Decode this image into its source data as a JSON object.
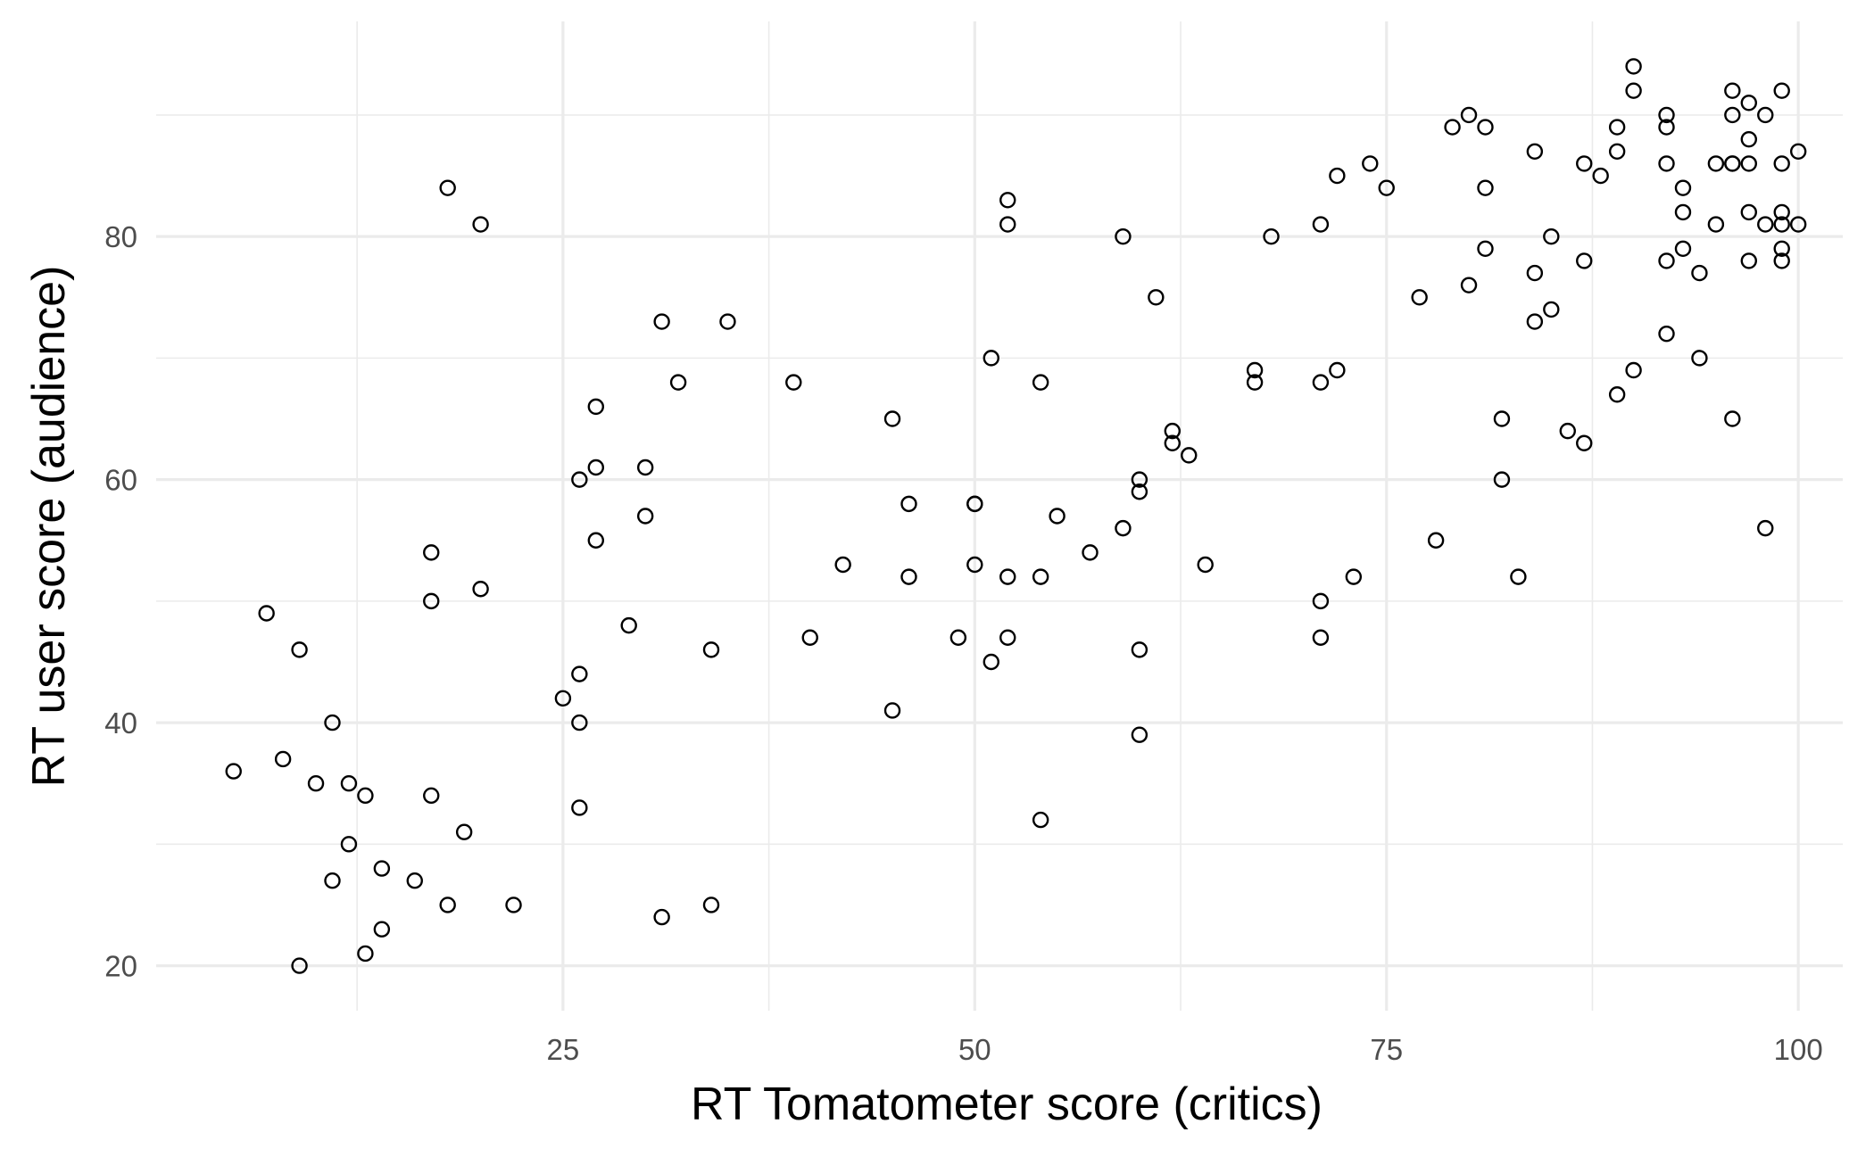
{
  "chart_data": {
    "type": "scatter",
    "xlabel": "RT Tomatometer score (critics)",
    "ylabel": "RT user score (audience)",
    "xlim": [
      0.3,
      102.7
    ],
    "ylim": [
      16.3,
      97.7
    ],
    "x_ticks": [
      25,
      50,
      75,
      100
    ],
    "x_minor_ticks": [
      12.5,
      37.5,
      62.5,
      87.5
    ],
    "y_ticks": [
      20,
      40,
      60,
      80
    ],
    "y_minor_ticks": [
      30,
      50,
      70,
      90
    ],
    "grid": true,
    "legend": "none",
    "marker": "open-circle",
    "points": [
      [
        5,
        36
      ],
      [
        7,
        49
      ],
      [
        8,
        37
      ],
      [
        9,
        46
      ],
      [
        9,
        20
      ],
      [
        10,
        35
      ],
      [
        11,
        40
      ],
      [
        11,
        27
      ],
      [
        12,
        35
      ],
      [
        12,
        30
      ],
      [
        13,
        34
      ],
      [
        13,
        21
      ],
      [
        14,
        28
      ],
      [
        14,
        23
      ],
      [
        16,
        27
      ],
      [
        17,
        54
      ],
      [
        17,
        50
      ],
      [
        17,
        34
      ],
      [
        18,
        84
      ],
      [
        18,
        25
      ],
      [
        19,
        31
      ],
      [
        20,
        81
      ],
      [
        20,
        51
      ],
      [
        22,
        25
      ],
      [
        25,
        42
      ],
      [
        26,
        60
      ],
      [
        26,
        44
      ],
      [
        26,
        40
      ],
      [
        26,
        33
      ],
      [
        27,
        66
      ],
      [
        27,
        61
      ],
      [
        27,
        55
      ],
      [
        29,
        48
      ],
      [
        30,
        61
      ],
      [
        30,
        57
      ],
      [
        31,
        73
      ],
      [
        31,
        24
      ],
      [
        32,
        68
      ],
      [
        34,
        46
      ],
      [
        34,
        25
      ],
      [
        35,
        73
      ],
      [
        39,
        68
      ],
      [
        40,
        47
      ],
      [
        42,
        53
      ],
      [
        45,
        65
      ],
      [
        45,
        41
      ],
      [
        46,
        58
      ],
      [
        46,
        52
      ],
      [
        49,
        47
      ],
      [
        50,
        58
      ],
      [
        50,
        58
      ],
      [
        50,
        53
      ],
      [
        51,
        70
      ],
      [
        51,
        45
      ],
      [
        52,
        83
      ],
      [
        52,
        81
      ],
      [
        52,
        52
      ],
      [
        52,
        47
      ],
      [
        54,
        68
      ],
      [
        54,
        52
      ],
      [
        54,
        32
      ],
      [
        55,
        57
      ],
      [
        57,
        54
      ],
      [
        59,
        80
      ],
      [
        59,
        56
      ],
      [
        60,
        60
      ],
      [
        60,
        59
      ],
      [
        60,
        46
      ],
      [
        60,
        39
      ],
      [
        61,
        75
      ],
      [
        62,
        64
      ],
      [
        62,
        63
      ],
      [
        63,
        62
      ],
      [
        64,
        53
      ],
      [
        67,
        69
      ],
      [
        67,
        68
      ],
      [
        68,
        80
      ],
      [
        71,
        81
      ],
      [
        71,
        68
      ],
      [
        71,
        50
      ],
      [
        71,
        47
      ],
      [
        72,
        85
      ],
      [
        72,
        69
      ],
      [
        73,
        52
      ],
      [
        74,
        86
      ],
      [
        75,
        84
      ],
      [
        77,
        75
      ],
      [
        78,
        55
      ],
      [
        79,
        89
      ],
      [
        80,
        90
      ],
      [
        80,
        76
      ],
      [
        81,
        89
      ],
      [
        81,
        84
      ],
      [
        81,
        79
      ],
      [
        82,
        65
      ],
      [
        82,
        60
      ],
      [
        83,
        52
      ],
      [
        84,
        87
      ],
      [
        84,
        77
      ],
      [
        84,
        73
      ],
      [
        85,
        80
      ],
      [
        85,
        74
      ],
      [
        86,
        64
      ],
      [
        87,
        86
      ],
      [
        87,
        78
      ],
      [
        87,
        63
      ],
      [
        88,
        85
      ],
      [
        89,
        89
      ],
      [
        89,
        87
      ],
      [
        89,
        67
      ],
      [
        90,
        94
      ],
      [
        90,
        92
      ],
      [
        90,
        69
      ],
      [
        92,
        90
      ],
      [
        92,
        89
      ],
      [
        92,
        86
      ],
      [
        92,
        78
      ],
      [
        92,
        72
      ],
      [
        93,
        84
      ],
      [
        93,
        82
      ],
      [
        93,
        79
      ],
      [
        94,
        77
      ],
      [
        94,
        70
      ],
      [
        95,
        86
      ],
      [
        95,
        81
      ],
      [
        96,
        92
      ],
      [
        96,
        90
      ],
      [
        96,
        86
      ],
      [
        96,
        86
      ],
      [
        96,
        65
      ],
      [
        97,
        91
      ],
      [
        97,
        88
      ],
      [
        97,
        86
      ],
      [
        97,
        82
      ],
      [
        97,
        78
      ],
      [
        98,
        90
      ],
      [
        98,
        81
      ],
      [
        98,
        56
      ],
      [
        99,
        92
      ],
      [
        99,
        86
      ],
      [
        99,
        82
      ],
      [
        99,
        81
      ],
      [
        99,
        79
      ],
      [
        99,
        78
      ],
      [
        100,
        87
      ],
      [
        100,
        81
      ]
    ]
  }
}
